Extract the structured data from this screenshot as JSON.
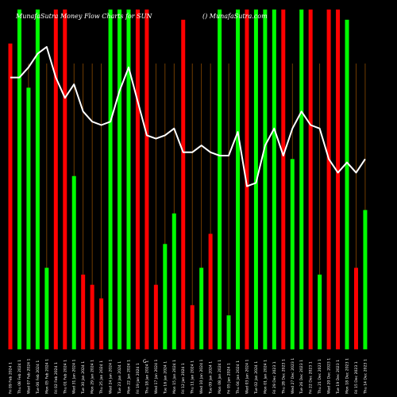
{
  "chart_data": {
    "type": "bar",
    "title": "MunafaSutra  Money Flow  Charts for SUN",
    "subtitle": "() MunafaSutra.com",
    "axis_mark": "C",
    "colors": {
      "up": "#00ff00",
      "down": "#ff0000",
      "line": "#ffffff",
      "grid": "#8a4a00",
      "background": "#000000"
    },
    "ylim": [
      0,
      100
    ],
    "categories": [
      "Fri 09 Feb 2024 1",
      "Thu 08 Feb 2024 1",
      "Wed 07 Feb 2024 1",
      "Tue 06 Feb 2024 1",
      "Mon 05 Feb 2024 1",
      "Fri 02 Feb 2024 1",
      "Thu 01 Feb 2024 1",
      "Wed 31 Jan 2024 1",
      "Tue 30 Jan 2024 1",
      "Mon 29 Jan 2024 1",
      "Thu 25 Jan 2024 1",
      "Wed 24 Jan 2024 1",
      "Tue 23 Jan 2024 1",
      "Mon 22 Jan 2024 1",
      "Fri 19 Jan 2024 1",
      "Thu 18 Jan 2024 1",
      "Wed 17 Jan 2024 1",
      "Tue 16 Jan 2024 1",
      "Mon 15 Jan 2024 1",
      "Fri 12 Jan 2024 1",
      "Thu 11 Jan 2024 1",
      "Wed 10 Jan 2024 1",
      "Tue 09 Jan 2024 1",
      "Mon 08 Jan 2024 1",
      "Fri 05 Jan 2024 1",
      "Thu 04 Jan 2024 1",
      "Wed 03 Jan 2024 1",
      "Tue 02 Jan 2024 1",
      "Mon 01 Jan 2024 1",
      "Fri 29 Dec 2023 1",
      "Thu 28 Dec 2023 1",
      "Wed 27 Dec 2023 1",
      "Tue 26 Dec 2023 1",
      "Fri 22 Dec 2023 1",
      "Thu 21 Dec 2023 1",
      "Wed 20 Dec 2023 1",
      "Tue 19 Dec 2023 1",
      "Mon 18 Dec 2023 1",
      "Fri 15 Dec 2023 1",
      "Thu 14 Dec 2023 1"
    ],
    "bars": [
      {
        "value": 90,
        "dir": "down"
      },
      {
        "value": 100,
        "dir": "up"
      },
      {
        "value": 77,
        "dir": "up"
      },
      {
        "value": 100,
        "dir": "up"
      },
      {
        "value": 24,
        "dir": "up"
      },
      {
        "value": 100,
        "dir": "down"
      },
      {
        "value": 100,
        "dir": "down"
      },
      {
        "value": 51,
        "dir": "up"
      },
      {
        "value": 22,
        "dir": "down"
      },
      {
        "value": 19,
        "dir": "down"
      },
      {
        "value": 15,
        "dir": "down"
      },
      {
        "value": 100,
        "dir": "up"
      },
      {
        "value": 100,
        "dir": "up"
      },
      {
        "value": 100,
        "dir": "up"
      },
      {
        "value": 100,
        "dir": "down"
      },
      {
        "value": 100,
        "dir": "down"
      },
      {
        "value": 19,
        "dir": "down"
      },
      {
        "value": 31,
        "dir": "up"
      },
      {
        "value": 40,
        "dir": "up"
      },
      {
        "value": 97,
        "dir": "down"
      },
      {
        "value": 13,
        "dir": "down"
      },
      {
        "value": 24,
        "dir": "up"
      },
      {
        "value": 34,
        "dir": "down"
      },
      {
        "value": 100,
        "dir": "up"
      },
      {
        "value": 10,
        "dir": "up"
      },
      {
        "value": 100,
        "dir": "up"
      },
      {
        "value": 100,
        "dir": "down"
      },
      {
        "value": 100,
        "dir": "up"
      },
      {
        "value": 100,
        "dir": "up"
      },
      {
        "value": 100,
        "dir": "up"
      },
      {
        "value": 100,
        "dir": "down"
      },
      {
        "value": 56,
        "dir": "up"
      },
      {
        "value": 100,
        "dir": "up"
      },
      {
        "value": 100,
        "dir": "down"
      },
      {
        "value": 22,
        "dir": "up"
      },
      {
        "value": 100,
        "dir": "down"
      },
      {
        "value": 100,
        "dir": "down"
      },
      {
        "value": 97,
        "dir": "up"
      },
      {
        "value": 24,
        "dir": "down"
      },
      {
        "value": 41,
        "dir": "up"
      }
    ],
    "line_values": [
      80,
      80,
      83,
      87,
      89,
      80,
      74,
      78,
      70,
      67,
      66,
      67,
      76,
      83,
      73,
      63,
      62,
      63,
      65,
      58,
      58,
      60,
      58,
      57,
      57,
      64,
      48,
      49,
      60,
      65,
      57,
      65,
      70,
      66,
      65,
      56,
      52,
      55,
      52,
      56
    ]
  }
}
